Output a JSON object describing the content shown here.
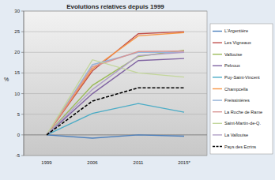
{
  "chart_data": {
    "type": "line",
    "title": "Evolutions  relatives depuis 1999",
    "y_label": "%",
    "categories": [
      "1999",
      "2006",
      "2011",
      "2015*"
    ],
    "ylim": [
      -5,
      30
    ],
    "yticks": [
      -5,
      0,
      5,
      10,
      15,
      20,
      25,
      30
    ],
    "grid": true,
    "legend": "right",
    "series": [
      {
        "name": "L'Argentière",
        "color": "#4f81bd",
        "line_style": "solid",
        "values": [
          0,
          -0.8,
          0,
          -0.3
        ]
      },
      {
        "name": "Les Vigneaux",
        "color": "#c0504d",
        "line_style": "solid",
        "values": [
          0,
          15.5,
          24.5,
          25
        ]
      },
      {
        "name": "Vallouise",
        "color": "#9bbb59",
        "line_style": "solid",
        "values": [
          0,
          12,
          19,
          20.5
        ]
      },
      {
        "name": "Pelvoux",
        "color": "#8064a2",
        "line_style": "solid",
        "values": [
          0,
          10,
          18,
          18.5
        ]
      },
      {
        "name": "Puy-Saint-Vincent",
        "color": "#4bacc6",
        "line_style": "solid",
        "values": [
          0,
          5.2,
          7.6,
          5.5
        ]
      },
      {
        "name": "Champcella",
        "color": "#f79646",
        "line_style": "solid",
        "values": [
          0,
          16,
          24,
          24.8
        ]
      },
      {
        "name": "Freissinières",
        "color": "#95b3d7",
        "line_style": "solid",
        "values": [
          0,
          17,
          20,
          20
        ]
      },
      {
        "name": "La Roche de Rame",
        "color": "#d99694",
        "line_style": "solid",
        "values": [
          0,
          16.5,
          20.2,
          20.3
        ]
      },
      {
        "name": "Saint-Martin-de-Q.",
        "color": "#c3d69b",
        "line_style": "solid",
        "values": [
          0,
          18.2,
          15,
          14
        ]
      },
      {
        "name": "La Vallouise",
        "color": "#b2a1c7",
        "line_style": "solid",
        "values": [
          0,
          11,
          19.2,
          20
        ]
      },
      {
        "name": "Pays des Ecrins",
        "color": "#000000",
        "line_style": "dashed",
        "values": [
          0,
          8.2,
          11.4,
          11.4
        ]
      }
    ]
  }
}
